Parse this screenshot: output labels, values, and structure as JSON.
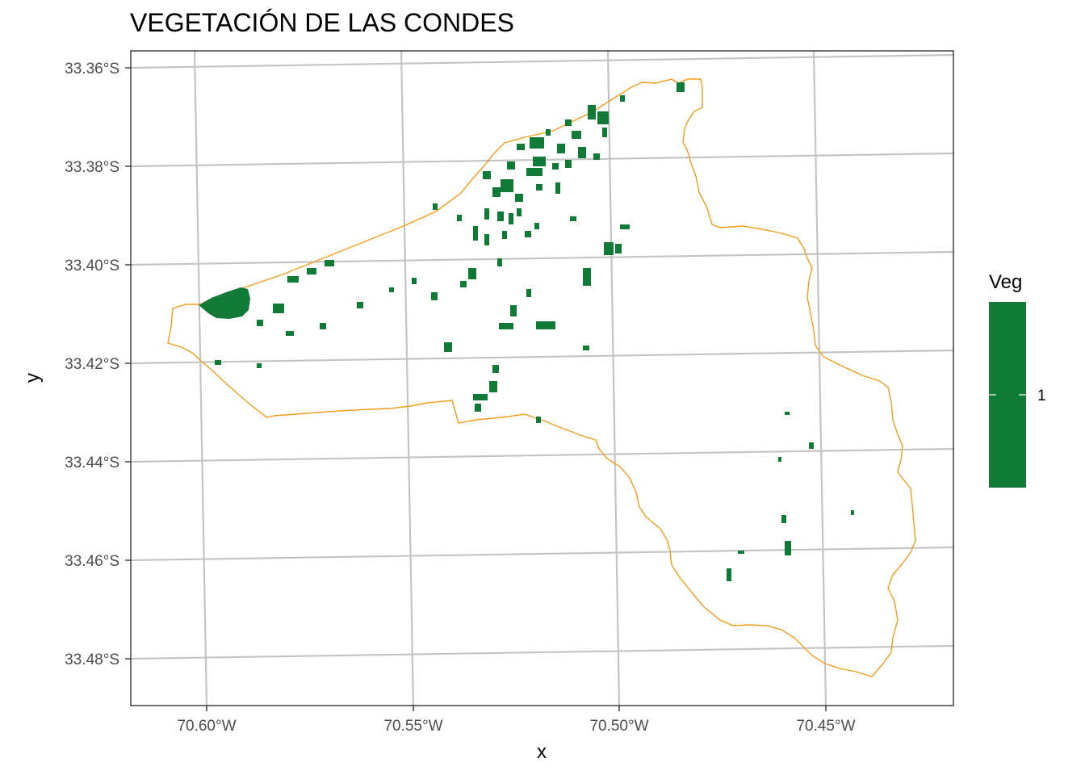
{
  "title": "VEGETACIÓN DE LAS CONDES",
  "axes": {
    "x_label": "x",
    "y_label": "y",
    "x_ticks": [
      "70.60°W",
      "70.55°W",
      "70.50°W",
      "70.45°W"
    ],
    "y_ticks": [
      "33.36°S",
      "33.38°S",
      "33.40°S",
      "33.42°S",
      "33.44°S",
      "33.46°S",
      "33.48°S"
    ]
  },
  "legend": {
    "title": "Veg",
    "label": "1",
    "color": "#117a37"
  },
  "colors": {
    "boundary": "#f59c1a",
    "vegetation": "#117a37",
    "grid": "#c4c4c4",
    "panel_border": "#333333"
  },
  "chart_data": {
    "type": "map",
    "title": "VEGETACIÓN DE LAS CONDES",
    "xlabel": "x",
    "ylabel": "y",
    "xlim": [
      -70.618,
      -70.418
    ],
    "ylim": [
      -33.49,
      -33.357
    ],
    "crs_note": "graticule lines slightly rotated (projected raster)",
    "grid": true,
    "legend_position": "right",
    "layers": [
      {
        "kind": "raster",
        "name": "Veg",
        "values": [
          1
        ],
        "color": "#117a37"
      },
      {
        "kind": "boundary",
        "color": "#f59c1a"
      }
    ]
  }
}
